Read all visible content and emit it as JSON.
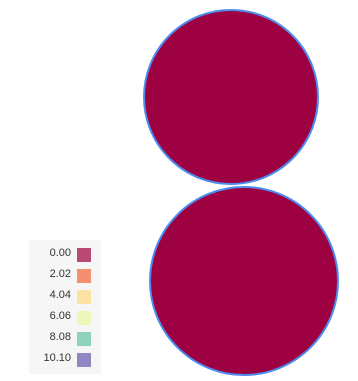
{
  "chart_data": {
    "type": "choropleth",
    "title": "",
    "regions": [
      {
        "name": "",
        "value": 0.0
      },
      {
        "name": "",
        "value": 0.0
      }
    ],
    "region_fill": "#9e0142",
    "region_outline": "#4c8cf0",
    "legend": {
      "placement": "bottom-left",
      "entries": [
        {
          "label": "0.00",
          "color": "#b84a73"
        },
        {
          "label": "2.02",
          "color": "#f4906f"
        },
        {
          "label": "4.04",
          "color": "#fde3a3"
        },
        {
          "label": "6.06",
          "color": "#eef5b8"
        },
        {
          "label": "8.08",
          "color": "#8fd3bb"
        },
        {
          "label": "10.10",
          "color": "#9089c1"
        }
      ]
    }
  }
}
